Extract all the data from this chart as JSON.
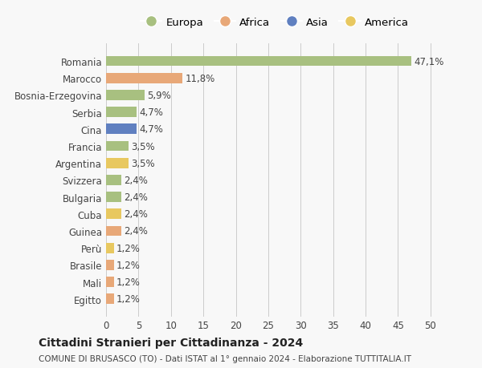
{
  "countries": [
    "Romania",
    "Marocco",
    "Bosnia-Erzegovina",
    "Serbia",
    "Cina",
    "Francia",
    "Argentina",
    "Svizzera",
    "Bulgaria",
    "Cuba",
    "Guinea",
    "Perù",
    "Brasile",
    "Mali",
    "Egitto"
  ],
  "values": [
    47.1,
    11.8,
    5.9,
    4.7,
    4.7,
    3.5,
    3.5,
    2.4,
    2.4,
    2.4,
    2.4,
    1.2,
    1.2,
    1.2,
    1.2
  ],
  "labels": [
    "47,1%",
    "11,8%",
    "5,9%",
    "4,7%",
    "4,7%",
    "3,5%",
    "3,5%",
    "2,4%",
    "2,4%",
    "2,4%",
    "2,4%",
    "1,2%",
    "1,2%",
    "1,2%",
    "1,2%"
  ],
  "colors": [
    "#a8c080",
    "#e8a878",
    "#a8c080",
    "#a8c080",
    "#6080c0",
    "#a8c080",
    "#e8c860",
    "#a8c080",
    "#a8c080",
    "#e8c860",
    "#e8a878",
    "#e8c860",
    "#e8a878",
    "#e8a878",
    "#e8a878"
  ],
  "legend": [
    {
      "label": "Europa",
      "color": "#a8c080"
    },
    {
      "label": "Africa",
      "color": "#e8a878"
    },
    {
      "label": "Asia",
      "color": "#6080c0"
    },
    {
      "label": "America",
      "color": "#e8c860"
    }
  ],
  "xlim": [
    0,
    52
  ],
  "xticks": [
    0,
    5,
    10,
    15,
    20,
    25,
    30,
    35,
    40,
    45,
    50
  ],
  "title": "Cittadini Stranieri per Cittadinanza - 2024",
  "subtitle": "COMUNE DI BRUSASCO (TO) - Dati ISTAT al 1° gennaio 2024 - Elaborazione TUTTITALIA.IT",
  "bg_color": "#f8f8f8",
  "bar_height": 0.6,
  "label_fontsize": 8.5,
  "tick_fontsize": 8.5
}
